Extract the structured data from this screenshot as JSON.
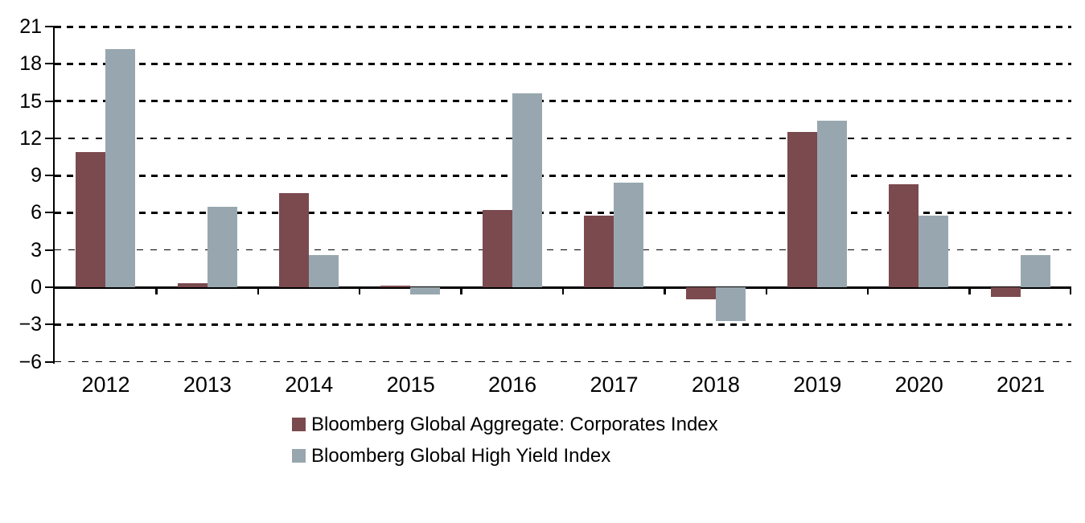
{
  "chart_data": {
    "type": "bar",
    "title": "",
    "xlabel": "",
    "ylabel": "",
    "categories": [
      "2012",
      "2013",
      "2014",
      "2015",
      "2016",
      "2017",
      "2018",
      "2019",
      "2020",
      "2021"
    ],
    "series": [
      {
        "name": "Bloomberg Global Aggregate: Corporates Index",
        "color": "#7A4A4E",
        "values": [
          10.9,
          0.3,
          7.6,
          0.1,
          6.2,
          5.8,
          -1.0,
          12.5,
          8.3,
          -0.8
        ]
      },
      {
        "name": "Bloomberg Global High Yield Index",
        "color": "#98A7AF",
        "values": [
          19.2,
          6.5,
          2.6,
          -0.6,
          15.6,
          8.4,
          -2.7,
          13.4,
          5.8,
          2.6
        ]
      }
    ],
    "ylim": [
      -6,
      21
    ],
    "ytick_step": 3,
    "yticks": [
      21,
      18,
      15,
      12,
      9,
      6,
      3,
      0,
      -3,
      -6
    ],
    "ytick_labels": [
      "21",
      "18",
      "15",
      "12",
      "9",
      "6",
      "3",
      "0",
      "−3",
      "−6"
    ],
    "gridlines": {
      "bold": [
        21,
        18,
        15,
        9,
        6,
        -3
      ],
      "thin": [
        12,
        3,
        -6
      ],
      "grid": true
    },
    "axis_color": "#000000",
    "legend_position": "bottom-left"
  },
  "legend": {
    "items": [
      {
        "label": "Bloomberg Global Aggregate: Corporates Index",
        "color": "#7A4A4E"
      },
      {
        "label": "Bloomberg Global High Yield Index",
        "color": "#98A7AF"
      }
    ]
  }
}
